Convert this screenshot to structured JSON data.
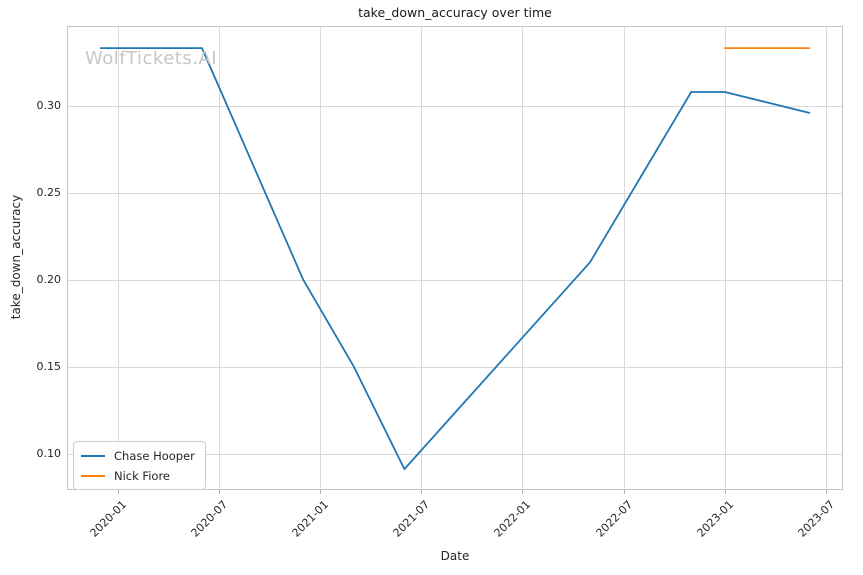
{
  "watermark": {
    "text": "WolfTickets.AI"
  },
  "chart_data": {
    "type": "line",
    "title": "take_down_accuracy over time",
    "xlabel": "Date",
    "ylabel": "take_down_accuracy",
    "x_tick_labels": [
      "2020-01",
      "2020-07",
      "2021-01",
      "2021-07",
      "2022-01",
      "2022-07",
      "2023-01",
      "2023-07"
    ],
    "y_tick_labels": [
      "0.10",
      "0.15",
      "0.20",
      "0.25",
      "0.30"
    ],
    "xlim": [
      "2019-10",
      "2023-08"
    ],
    "ylim": [
      0.079,
      0.346
    ],
    "grid": true,
    "legend_position": "lower left",
    "series": [
      {
        "name": "Chase Hooper",
        "color": "#1f77b4",
        "points": [
          [
            "2019-12",
            0.3333
          ],
          [
            "2020-06",
            0.3333
          ],
          [
            "2020-12",
            0.2
          ],
          [
            "2021-03",
            0.15
          ],
          [
            "2021-06",
            0.091
          ],
          [
            "2022-05",
            0.21
          ],
          [
            "2022-11",
            0.308
          ],
          [
            "2023-01",
            0.308
          ],
          [
            "2023-06",
            0.296
          ]
        ]
      },
      {
        "name": "Nick Fiore",
        "color": "#ff7f0e",
        "points": [
          [
            "2023-01",
            0.3333
          ],
          [
            "2023-06",
            0.3333
          ]
        ]
      }
    ]
  },
  "style_colors": {
    "grid": "#d9d9d9",
    "frame": "#c4c4c4",
    "tick_mark": "#b0b0b0"
  }
}
